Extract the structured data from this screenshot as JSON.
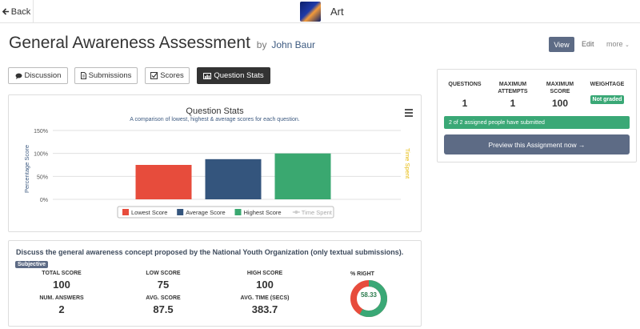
{
  "topbar": {
    "back_label": "Back",
    "course_name": "Art"
  },
  "header": {
    "title": "General Awareness Assessment",
    "by": "by",
    "author": "John Baur",
    "view_label": "View",
    "edit_label": "Edit",
    "more_label": "more"
  },
  "tabs": [
    {
      "label": "Discussion",
      "icon": "comments-icon"
    },
    {
      "label": "Submissions",
      "icon": "file-icon"
    },
    {
      "label": "Scores",
      "icon": "checkbox-icon"
    },
    {
      "label": "Question Stats",
      "icon": "chart-icon",
      "active": true
    }
  ],
  "chart_data": {
    "type": "bar",
    "title": "Question Stats",
    "subtitle": "A comparison of lowest, highest & average scores for each question.",
    "ylabel": "Percentage Score",
    "y2label": "Time Spent",
    "yticks": [
      "0%",
      "50%",
      "100%",
      "150%"
    ],
    "ylim": [
      0,
      150
    ],
    "grid": true,
    "legend_position": "bottom",
    "series": [
      {
        "name": "Lowest Score",
        "values": [
          75
        ],
        "color": "#e74c3c"
      },
      {
        "name": "Average Score",
        "values": [
          87.5
        ],
        "color": "#34557d"
      },
      {
        "name": "Highest Score",
        "values": [
          100
        ],
        "color": "#3aa870"
      },
      {
        "name": "Time Spent",
        "values": [],
        "color": "#cccccc"
      }
    ]
  },
  "question": {
    "text": "Discuss the general awareness concept proposed by the National Youth Organization (only textual submissions).",
    "badge": "Subjective",
    "stats": {
      "total_score_label": "TOTAL SCORE",
      "total_score": "100",
      "low_score_label": "LOW SCORE",
      "low_score": "75",
      "high_score_label": "HIGH SCORE",
      "high_score": "100",
      "num_answers_label": "NUM. ANSWERS",
      "num_answers": "2",
      "avg_score_label": "AVG. SCORE",
      "avg_score": "87.5",
      "avg_time_label": "AVG. TIME (SECS)",
      "avg_time": "383.7",
      "pct_right_label": "% RIGHT",
      "pct_right": "58.33",
      "pct_right_value": 58.33
    }
  },
  "info": {
    "questions_label": "QUESTIONS",
    "questions": "1",
    "max_attempts_label": "MAXIMUM ATTEMPTS",
    "max_attempts": "1",
    "max_score_label": "MAXIMUM SCORE",
    "max_score": "100",
    "weightage_label": "WEIGHTAGE",
    "weightage": "Not graded",
    "submitted_text": "2 of 2 assigned people have submitted",
    "preview_label": "Preview this Assignment now →"
  },
  "colors": {
    "accent": "#5d6b85",
    "success": "#3aa876",
    "danger": "#e74c3c"
  }
}
